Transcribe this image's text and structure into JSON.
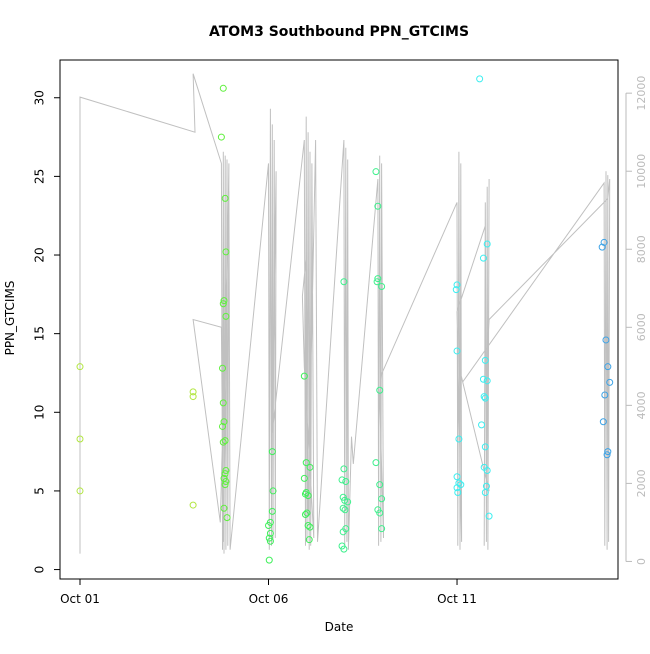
{
  "chart_data": {
    "type": "scatter",
    "title": "ATOM3 Southbound PPN_GTCIMS",
    "xlabel": "Date",
    "ylabel": "PPN_GTCIMS",
    "x_unit": "date (October)",
    "xlim": [
      1.0,
      15.8
    ],
    "ylim": [
      -0.6,
      32.4
    ],
    "y_ticks": [
      0,
      5,
      10,
      15,
      20,
      25,
      30
    ],
    "x_ticks": [
      {
        "value": 1,
        "label": "Oct 01"
      },
      {
        "value": 6,
        "label": "Oct 06"
      },
      {
        "value": 11,
        "label": "Oct 11"
      }
    ],
    "secondary_axis": {
      "side": "right",
      "ylim": [
        -450,
        12850
      ],
      "ticks": [
        0,
        2000,
        4000,
        6000,
        8000,
        10000,
        12000
      ],
      "tick_color": "#bbbbbb"
    },
    "grid": false,
    "legend": "none",
    "line_color": "#c0c0c0",
    "point_series": [
      {
        "points": [
          [
            1.0,
            12.9
          ],
          [
            1.0,
            8.3
          ],
          [
            1.0,
            5.0
          ],
          [
            4.0,
            11.3
          ],
          [
            4.0,
            11.0
          ],
          [
            4.0,
            4.1
          ]
        ]
      },
      {
        "points": [
          [
            4.8,
            30.6
          ],
          [
            4.75,
            27.5
          ],
          [
            4.85,
            23.6
          ],
          [
            4.87,
            20.2
          ],
          [
            4.82,
            17.1
          ],
          [
            4.8,
            16.9
          ],
          [
            4.87,
            16.1
          ],
          [
            4.78,
            12.8
          ],
          [
            4.8,
            10.6
          ],
          [
            4.82,
            9.4
          ],
          [
            4.78,
            9.1
          ],
          [
            4.85,
            8.2
          ],
          [
            4.8,
            8.1
          ],
          [
            4.87,
            6.3
          ],
          [
            4.85,
            6.1
          ],
          [
            4.82,
            5.8
          ],
          [
            4.87,
            5.6
          ],
          [
            4.85,
            5.4
          ],
          [
            4.9,
            3.3
          ],
          [
            4.82,
            3.9
          ]
        ]
      },
      {
        "points": [
          [
            6.1,
            7.5
          ],
          [
            6.12,
            5.0
          ],
          [
            6.1,
            3.7
          ],
          [
            6.05,
            3.0
          ],
          [
            6.0,
            2.8
          ],
          [
            6.05,
            2.3
          ],
          [
            6.02,
            2.0
          ],
          [
            6.05,
            1.8
          ],
          [
            6.02,
            0.6
          ],
          [
            6.95,
            12.3
          ],
          [
            7.0,
            6.8
          ],
          [
            7.1,
            6.5
          ],
          [
            6.95,
            5.8
          ],
          [
            7.0,
            4.9
          ],
          [
            6.98,
            4.8
          ],
          [
            7.05,
            4.7
          ],
          [
            7.02,
            3.6
          ],
          [
            6.98,
            3.5
          ],
          [
            7.05,
            2.8
          ],
          [
            7.1,
            2.7
          ],
          [
            7.08,
            1.9
          ]
        ]
      },
      {
        "points": [
          [
            8.0,
            18.3
          ],
          [
            8.0,
            6.4
          ],
          [
            7.95,
            5.7
          ],
          [
            8.05,
            5.6
          ],
          [
            7.98,
            4.6
          ],
          [
            8.02,
            4.4
          ],
          [
            8.1,
            4.3
          ],
          [
            7.98,
            3.9
          ],
          [
            8.03,
            3.8
          ],
          [
            8.05,
            2.6
          ],
          [
            7.98,
            2.4
          ],
          [
            7.95,
            1.5
          ],
          [
            8.0,
            1.3
          ],
          [
            8.85,
            25.3
          ],
          [
            8.9,
            23.1
          ],
          [
            8.9,
            18.5
          ],
          [
            8.88,
            18.3
          ],
          [
            9.0,
            18.0
          ],
          [
            8.95,
            11.4
          ],
          [
            8.85,
            6.8
          ],
          [
            8.95,
            5.4
          ],
          [
            9.0,
            4.5
          ],
          [
            8.9,
            3.8
          ],
          [
            8.95,
            3.6
          ],
          [
            9.0,
            2.6
          ]
        ]
      },
      {
        "points": [
          [
            11.6,
            31.2
          ],
          [
            11.0,
            18.1
          ],
          [
            10.98,
            17.8
          ],
          [
            11.0,
            13.9
          ],
          [
            11.05,
            8.3
          ],
          [
            11.0,
            5.9
          ],
          [
            11.05,
            5.5
          ],
          [
            11.1,
            5.4
          ],
          [
            11.0,
            5.2
          ],
          [
            11.02,
            4.9
          ],
          [
            11.8,
            20.7
          ],
          [
            11.7,
            19.8
          ],
          [
            11.75,
            13.3
          ],
          [
            11.7,
            12.1
          ],
          [
            11.8,
            12.0
          ],
          [
            11.72,
            11.0
          ],
          [
            11.75,
            10.9
          ],
          [
            11.65,
            9.2
          ],
          [
            11.75,
            7.8
          ],
          [
            11.72,
            6.5
          ],
          [
            11.8,
            6.3
          ],
          [
            11.78,
            5.3
          ],
          [
            11.75,
            4.9
          ],
          [
            11.85,
            3.4
          ]
        ]
      },
      {
        "points": [
          [
            14.9,
            20.8
          ],
          [
            14.85,
            20.5
          ],
          [
            14.95,
            14.6
          ],
          [
            15.0,
            12.9
          ],
          [
            15.05,
            11.9
          ],
          [
            14.92,
            11.1
          ],
          [
            14.88,
            9.4
          ],
          [
            15.0,
            7.5
          ],
          [
            14.98,
            7.3
          ]
        ]
      }
    ],
    "line_trace_y2": [
      [
        1.0,
        200
      ],
      [
        1.0,
        11900
      ],
      [
        4.05,
        11000
      ],
      [
        4.0,
        12500
      ],
      [
        4.75,
        10200
      ],
      [
        4.78,
        300
      ],
      [
        4.8,
        10500
      ],
      [
        4.82,
        200
      ],
      [
        4.85,
        10400
      ],
      [
        4.87,
        300
      ],
      [
        4.9,
        10300
      ],
      [
        4.92,
        400
      ],
      [
        4.95,
        10200
      ],
      [
        4.8,
        500
      ],
      [
        4.75,
        6000
      ],
      [
        4.0,
        6200
      ],
      [
        4.72,
        1000
      ],
      [
        4.95,
        9500
      ],
      [
        4.98,
        300
      ],
      [
        6.0,
        10200
      ],
      [
        6.02,
        300
      ],
      [
        6.05,
        11600
      ],
      [
        6.08,
        400
      ],
      [
        6.1,
        11200
      ],
      [
        6.12,
        500
      ],
      [
        6.15,
        10800
      ],
      [
        6.18,
        600
      ],
      [
        6.2,
        10000
      ],
      [
        6.1,
        3300
      ],
      [
        6.95,
        10800
      ],
      [
        6.98,
        400
      ],
      [
        7.0,
        11400
      ],
      [
        7.02,
        500
      ],
      [
        7.05,
        11000
      ],
      [
        7.08,
        300
      ],
      [
        7.1,
        10500
      ],
      [
        7.12,
        400
      ],
      [
        7.15,
        10200
      ],
      [
        7.2,
        600
      ],
      [
        6.95,
        5000
      ],
      [
        6.9,
        6800
      ],
      [
        7.0,
        7800
      ],
      [
        7.05,
        1200
      ],
      [
        7.25,
        10800
      ],
      [
        7.3,
        500
      ],
      [
        8.0,
        10800
      ],
      [
        8.02,
        400
      ],
      [
        8.05,
        10600
      ],
      [
        8.08,
        500
      ],
      [
        8.1,
        10300
      ],
      [
        8.12,
        300
      ],
      [
        8.2,
        3200
      ],
      [
        8.25,
        2500
      ],
      [
        8.9,
        9800
      ],
      [
        8.92,
        400
      ],
      [
        8.95,
        10400
      ],
      [
        8.98,
        500
      ],
      [
        9.0,
        10200
      ],
      [
        9.05,
        600
      ],
      [
        8.95,
        4200
      ],
      [
        9.0,
        4800
      ],
      [
        11.0,
        9200
      ],
      [
        11.02,
        400
      ],
      [
        11.05,
        10500
      ],
      [
        11.08,
        300
      ],
      [
        11.1,
        10200
      ],
      [
        11.12,
        500
      ],
      [
        11.0,
        6400
      ],
      [
        11.75,
        8600
      ],
      [
        11.72,
        400
      ],
      [
        11.75,
        9200
      ],
      [
        11.78,
        500
      ],
      [
        11.8,
        9600
      ],
      [
        11.82,
        300
      ],
      [
        11.85,
        9800
      ],
      [
        11.82,
        2000
      ],
      [
        11.85,
        1800
      ],
      [
        11.1,
        4800
      ],
      [
        11.15,
        4600
      ],
      [
        14.9,
        9700
      ],
      [
        14.92,
        400
      ],
      [
        14.95,
        10000
      ],
      [
        14.98,
        300
      ],
      [
        15.0,
        9900
      ],
      [
        15.02,
        500
      ],
      [
        15.05,
        9800
      ],
      [
        15.0,
        9300
      ],
      [
        11.85,
        6200
      ],
      [
        11.8,
        5200
      ]
    ],
    "point_colors": [
      "#b2e640",
      "#5ef03c",
      "#3ef05a",
      "#3ef08c",
      "#3ceef0",
      "#3ca2e6"
    ]
  }
}
